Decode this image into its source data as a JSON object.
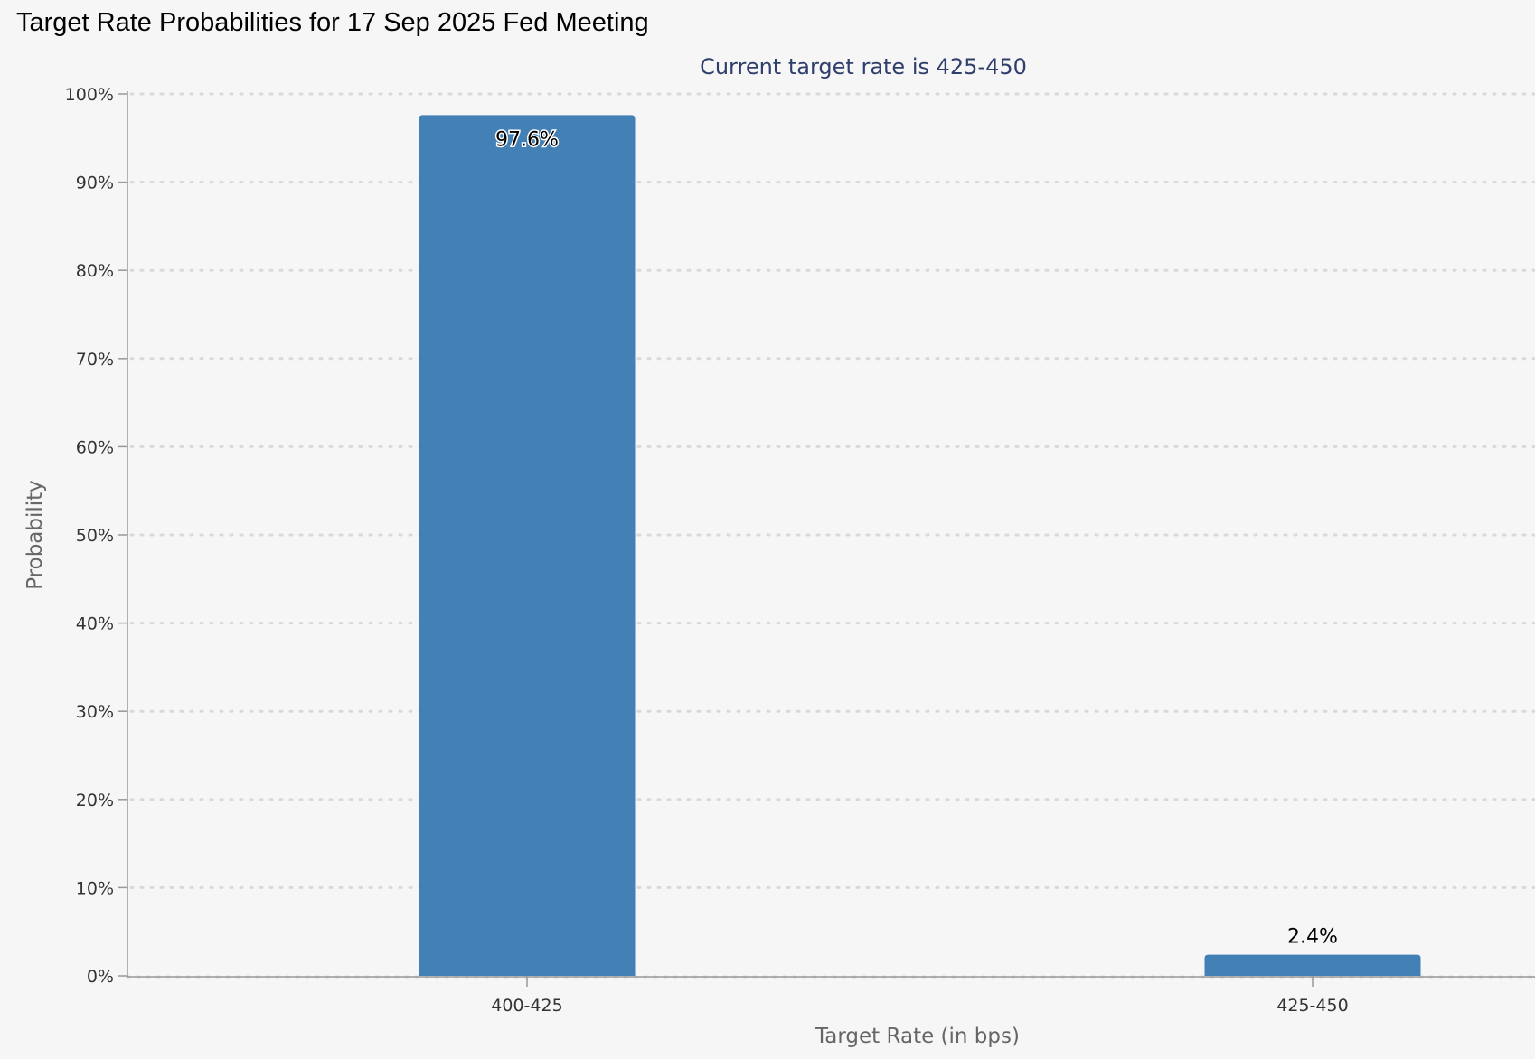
{
  "page": {
    "title": "Target Rate Probabilities for 17 Sep 2025 Fed Meeting"
  },
  "chart_data": {
    "type": "bar",
    "title": "Target Rate Probabilities for 17 Sep 2025 Fed Meeting",
    "subtitle": "Current target rate is 425-450",
    "xlabel": "Target Rate (in bps)",
    "ylabel": "Probability",
    "categories": [
      "400-425",
      "425-450"
    ],
    "values": [
      97.6,
      2.4
    ],
    "data_labels": [
      "97.6%",
      "2.4%"
    ],
    "ylim": [
      0,
      100
    ],
    "y_ticks": [
      0,
      10,
      20,
      30,
      40,
      50,
      60,
      70,
      80,
      90,
      100
    ],
    "y_tick_labels": [
      "0%",
      "10%",
      "20%",
      "30%",
      "40%",
      "50%",
      "60%",
      "70%",
      "80%",
      "90%",
      "100%"
    ],
    "grid": true,
    "grid_style": "dotted",
    "legend": "none",
    "colors": {
      "bar": "#4380b5",
      "subtitle": "#2f3e6b",
      "grid": "#d9d9d9",
      "axis": "#999999"
    }
  }
}
